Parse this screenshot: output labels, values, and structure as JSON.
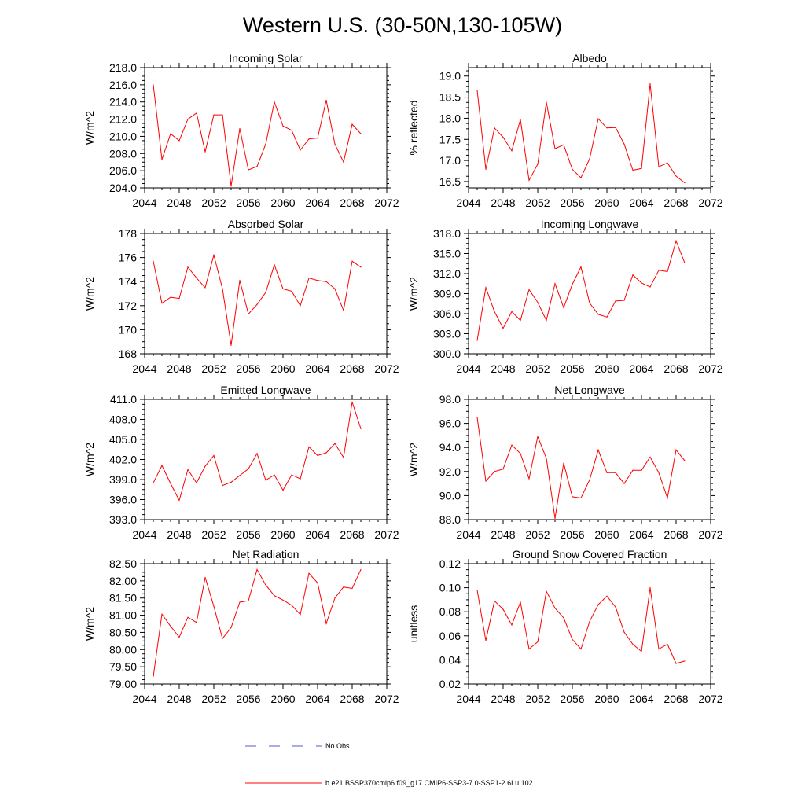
{
  "figure": {
    "title": "Western U.S. (30-50N,130-105W)"
  },
  "legend": {
    "obs_label": "No Obs",
    "obs_color": "#5a5ad8",
    "run_label": "b.e21.BSSP370cmip6.f09_g17.CMIP6-SSP3-7.0-SSP1-2.6Lu.102",
    "run_color": "#ff0000"
  },
  "chart_data": [
    {
      "type": "line",
      "title": "Incoming Solar",
      "xlabel": "",
      "ylabel": "W/m^2",
      "xlim": [
        2044,
        2072
      ],
      "ylim": [
        204.0,
        218.0
      ],
      "x_ticks": [
        "2044",
        "2048",
        "2052",
        "2056",
        "2060",
        "2064",
        "2068",
        "2072"
      ],
      "y_ticks": [
        "204.0",
        "206.0",
        "208.0",
        "210.0",
        "212.0",
        "214.0",
        "216.0",
        "218.0"
      ],
      "x": [
        2045,
        2046,
        2047,
        2048,
        2049,
        2050,
        2051,
        2052,
        2053,
        2054,
        2055,
        2056,
        2057,
        2058,
        2059,
        2060,
        2061,
        2062,
        2063,
        2064,
        2065,
        2066,
        2067,
        2068,
        2069
      ],
      "series": [
        {
          "values": [
            216.0,
            207.3,
            210.3,
            209.5,
            212.0,
            212.7,
            208.2,
            212.5,
            212.5,
            204.2,
            210.9,
            206.1,
            206.5,
            209.1,
            214.0,
            211.2,
            210.7,
            208.4,
            209.7,
            209.8,
            214.2,
            209.1,
            207.0,
            211.4,
            210.3
          ]
        }
      ]
    },
    {
      "type": "line",
      "title": "Albedo",
      "xlabel": "",
      "ylabel": "% reflected",
      "xlim": [
        2044,
        2072
      ],
      "ylim": [
        16.35,
        19.2
      ],
      "x_ticks": [
        "2044",
        "2048",
        "2052",
        "2056",
        "2060",
        "2064",
        "2068",
        "2072"
      ],
      "y_ticks": [
        "16.5",
        "17.0",
        "17.5",
        "18.0",
        "18.5",
        "19.0"
      ],
      "x": [
        2045,
        2046,
        2047,
        2048,
        2049,
        2050,
        2051,
        2052,
        2053,
        2054,
        2055,
        2056,
        2057,
        2058,
        2059,
        2060,
        2061,
        2062,
        2063,
        2064,
        2065,
        2066,
        2067,
        2068,
        2069
      ],
      "series": [
        {
          "values": [
            18.66,
            16.79,
            17.77,
            17.55,
            17.23,
            17.97,
            16.53,
            16.91,
            18.38,
            17.28,
            17.37,
            16.79,
            16.59,
            17.04,
            17.99,
            17.77,
            17.78,
            17.39,
            16.77,
            16.81,
            18.82,
            16.85,
            16.94,
            16.63,
            16.47
          ]
        }
      ]
    },
    {
      "type": "line",
      "title": "Absorbed Solar",
      "xlabel": "",
      "ylabel": "W/m^2",
      "xlim": [
        2044,
        2072
      ],
      "ylim": [
        168.0,
        178.0
      ],
      "x_ticks": [
        "2044",
        "2048",
        "2052",
        "2056",
        "2060",
        "2064",
        "2068",
        "2072"
      ],
      "y_ticks": [
        "168",
        "170",
        "172",
        "174",
        "176",
        "178"
      ],
      "x": [
        2045,
        2046,
        2047,
        2048,
        2049,
        2050,
        2051,
        2052,
        2053,
        2054,
        2055,
        2056,
        2057,
        2058,
        2059,
        2060,
        2061,
        2062,
        2063,
        2064,
        2065,
        2066,
        2067,
        2068,
        2069
      ],
      "series": [
        {
          "values": [
            175.7,
            172.2,
            172.7,
            172.6,
            175.2,
            174.3,
            173.5,
            176.2,
            173.4,
            168.7,
            174.1,
            171.3,
            172.1,
            173.1,
            175.4,
            173.4,
            173.2,
            172.0,
            174.3,
            174.1,
            174.0,
            173.4,
            171.6,
            175.7,
            175.2
          ]
        }
      ]
    },
    {
      "type": "line",
      "title": "Incoming Longwave",
      "xlabel": "",
      "ylabel": "W/m^2",
      "xlim": [
        2044,
        2072
      ],
      "ylim": [
        300.0,
        318.0
      ],
      "x_ticks": [
        "2044",
        "2048",
        "2052",
        "2056",
        "2060",
        "2064",
        "2068",
        "2072"
      ],
      "y_ticks": [
        "300.0",
        "303.0",
        "306.0",
        "309.0",
        "312.0",
        "315.0",
        "318.0"
      ],
      "x": [
        2045,
        2046,
        2047,
        2048,
        2049,
        2050,
        2051,
        2052,
        2053,
        2054,
        2055,
        2056,
        2057,
        2058,
        2059,
        2060,
        2061,
        2062,
        2063,
        2064,
        2065,
        2066,
        2067,
        2068,
        2069
      ],
      "series": [
        {
          "values": [
            302.0,
            309.9,
            306.3,
            303.8,
            306.3,
            305.0,
            309.6,
            307.7,
            305.0,
            310.5,
            306.9,
            310.4,
            313.0,
            307.6,
            305.9,
            305.5,
            307.9,
            308.0,
            311.8,
            310.6,
            310.0,
            312.5,
            312.3,
            316.9,
            313.6
          ]
        }
      ]
    },
    {
      "type": "line",
      "title": "Emitted Longwave",
      "xlabel": "",
      "ylabel": "W/m^2",
      "xlim": [
        2044,
        2072
      ],
      "ylim": [
        393.0,
        411.0
      ],
      "x_ticks": [
        "2044",
        "2048",
        "2052",
        "2056",
        "2060",
        "2064",
        "2068",
        "2072"
      ],
      "y_ticks": [
        "393.0",
        "396.0",
        "399.0",
        "402.0",
        "405.0",
        "408.0",
        "411.0"
      ],
      "x": [
        2045,
        2046,
        2047,
        2048,
        2049,
        2050,
        2051,
        2052,
        2053,
        2054,
        2055,
        2056,
        2057,
        2058,
        2059,
        2060,
        2061,
        2062,
        2063,
        2064,
        2065,
        2066,
        2067,
        2068,
        2069
      ],
      "series": [
        {
          "values": [
            398.5,
            401.1,
            398.4,
            395.9,
            400.5,
            398.5,
            401.0,
            402.6,
            398.1,
            398.6,
            399.6,
            400.6,
            402.9,
            398.9,
            399.7,
            397.4,
            399.7,
            399.1,
            403.9,
            402.6,
            403.0,
            404.4,
            402.3,
            410.6,
            406.6
          ]
        }
      ]
    },
    {
      "type": "line",
      "title": "Net Longwave",
      "xlabel": "",
      "ylabel": "W/m^2",
      "xlim": [
        2044,
        2072
      ],
      "ylim": [
        88.0,
        98.0
      ],
      "x_ticks": [
        "2044",
        "2048",
        "2052",
        "2056",
        "2060",
        "2064",
        "2068",
        "2072"
      ],
      "y_ticks": [
        "88.0",
        "90.0",
        "92.0",
        "94.0",
        "96.0",
        "98.0"
      ],
      "x": [
        2045,
        2046,
        2047,
        2048,
        2049,
        2050,
        2051,
        2052,
        2053,
        2054,
        2055,
        2056,
        2057,
        2058,
        2059,
        2060,
        2061,
        2062,
        2063,
        2064,
        2065,
        2066,
        2067,
        2068,
        2069
      ],
      "series": [
        {
          "values": [
            96.5,
            91.2,
            92.0,
            92.2,
            94.2,
            93.5,
            91.4,
            94.9,
            93.1,
            88.1,
            92.7,
            89.9,
            89.8,
            91.3,
            93.8,
            91.9,
            91.9,
            91.0,
            92.1,
            92.1,
            93.2,
            91.9,
            89.8,
            93.8,
            92.9
          ]
        }
      ]
    },
    {
      "type": "line",
      "title": "Net Radiation",
      "xlabel": "",
      "ylabel": "W/m^2",
      "xlim": [
        2044,
        2072
      ],
      "ylim": [
        79.0,
        82.5
      ],
      "x_ticks": [
        "2044",
        "2048",
        "2052",
        "2056",
        "2060",
        "2064",
        "2068",
        "2072"
      ],
      "y_ticks": [
        "79.00",
        "79.50",
        "80.00",
        "80.50",
        "81.00",
        "81.50",
        "82.00",
        "82.50"
      ],
      "x": [
        2045,
        2046,
        2047,
        2048,
        2049,
        2050,
        2051,
        2052,
        2053,
        2054,
        2055,
        2056,
        2057,
        2058,
        2059,
        2060,
        2061,
        2062,
        2063,
        2064,
        2065,
        2066,
        2067,
        2068,
        2069
      ],
      "series": [
        {
          "values": [
            79.22,
            81.03,
            80.68,
            80.36,
            80.94,
            80.79,
            82.1,
            81.26,
            80.32,
            80.64,
            81.38,
            81.42,
            82.33,
            81.88,
            81.57,
            81.44,
            81.29,
            81.02,
            82.22,
            81.94,
            80.76,
            81.5,
            81.82,
            81.78,
            82.33
          ]
        }
      ]
    },
    {
      "type": "line",
      "title": "Ground Snow Covered Fraction",
      "xlabel": "",
      "ylabel": "unitless",
      "xlim": [
        2044,
        2072
      ],
      "ylim": [
        0.02,
        0.12
      ],
      "x_ticks": [
        "2044",
        "2048",
        "2052",
        "2056",
        "2060",
        "2064",
        "2068",
        "2072"
      ],
      "y_ticks": [
        "0.02",
        "0.04",
        "0.06",
        "0.08",
        "0.10",
        "0.12"
      ],
      "x": [
        2045,
        2046,
        2047,
        2048,
        2049,
        2050,
        2051,
        2052,
        2053,
        2054,
        2055,
        2056,
        2057,
        2058,
        2059,
        2060,
        2061,
        2062,
        2063,
        2064,
        2065,
        2066,
        2067,
        2068,
        2069
      ],
      "series": [
        {
          "values": [
            0.098,
            0.056,
            0.089,
            0.082,
            0.069,
            0.088,
            0.049,
            0.055,
            0.097,
            0.083,
            0.075,
            0.057,
            0.049,
            0.072,
            0.086,
            0.093,
            0.084,
            0.063,
            0.053,
            0.047,
            0.1,
            0.049,
            0.053,
            0.037,
            0.039
          ]
        }
      ]
    }
  ]
}
